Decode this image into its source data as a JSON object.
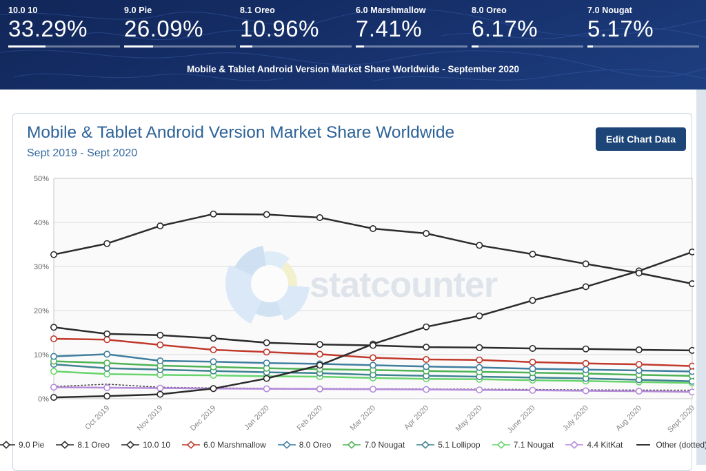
{
  "header": {
    "bg_color": "#16306b",
    "subtitle": "Mobile & Tablet Android Version Market Share Worldwide - September 2020",
    "stats": [
      {
        "label": "10.0 10",
        "value": "33.29%",
        "pct": 33.29
      },
      {
        "label": "9.0 Pie",
        "value": "26.09%",
        "pct": 26.09
      },
      {
        "label": "8.1 Oreo",
        "value": "10.96%",
        "pct": 10.96
      },
      {
        "label": "6.0 Marshmallow",
        "value": "7.41%",
        "pct": 7.41
      },
      {
        "label": "8.0 Oreo",
        "value": "6.17%",
        "pct": 6.17
      },
      {
        "label": "7.0 Nougat",
        "value": "5.17%",
        "pct": 5.17
      }
    ]
  },
  "card": {
    "title": "Mobile & Tablet Android Version Market Share Worldwide",
    "subtitle": "Sept 2019 - Sept 2020",
    "edit_button": "Edit Chart Data",
    "title_color": "#2d6398",
    "button_color": "#1d4577"
  },
  "watermark": {
    "text": "statcounter"
  },
  "page": {
    "strip_color": "#dde4ee"
  },
  "chart_data": {
    "type": "line",
    "title": "Mobile & Tablet Android Version Market Share Worldwide",
    "subtitle": "Sept 2019 - Sept 2020",
    "x": [
      "Sept 2019",
      "Oct 2019",
      "Nov 2019",
      "Dec 2019",
      "Jan 2020",
      "Feb 2020",
      "Mar 2020",
      "Apr 2020",
      "May 2020",
      "June 2020",
      "July 2020",
      "Aug 2020",
      "Sept 2020"
    ],
    "x_axis_labels": [
      "Oct 2019",
      "Nov 2019",
      "Dec 2019",
      "Jan 2020",
      "Feb 2020",
      "Mar 2020",
      "Apr 2020",
      "May 2020",
      "June 2020",
      "July 2020",
      "Aug 2020",
      "Sept 2020"
    ],
    "ylim": [
      0,
      50
    ],
    "ytick_labels": [
      "0%",
      "10%",
      "20%",
      "30%",
      "40%",
      "50%"
    ],
    "grid": "horizontal",
    "legend_position": "bottom",
    "marker": "open-circle",
    "series": [
      {
        "name": "9.0 Pie",
        "color": "#2b2b2b",
        "style": "solid",
        "values": [
          32.7,
          35.2,
          39.2,
          41.9,
          41.8,
          41.1,
          38.6,
          37.5,
          34.8,
          32.8,
          30.6,
          28.5,
          26.09
        ]
      },
      {
        "name": "8.1 Oreo",
        "color": "#2b2b2b",
        "style": "solid",
        "values": [
          16.2,
          14.7,
          14.4,
          13.7,
          12.7,
          12.3,
          12.1,
          11.7,
          11.6,
          11.4,
          11.3,
          11.1,
          10.96
        ]
      },
      {
        "name": "10.0 10",
        "color": "#2b2b2b",
        "style": "solid",
        "values": [
          0.3,
          0.6,
          1.0,
          2.3,
          4.6,
          7.6,
          12.4,
          16.3,
          18.8,
          22.3,
          25.4,
          29.0,
          33.29
        ]
      },
      {
        "name": "6.0 Marshmallow",
        "color": "#c0392b",
        "style": "solid",
        "values": [
          13.6,
          13.4,
          12.2,
          11.1,
          10.6,
          10.1,
          9.3,
          8.9,
          8.8,
          8.3,
          8.0,
          7.8,
          7.41
        ]
      },
      {
        "name": "8.0 Oreo",
        "color": "#3f7e9e",
        "style": "solid",
        "values": [
          9.6,
          10.1,
          8.6,
          8.4,
          8.1,
          7.9,
          7.6,
          7.3,
          7.1,
          6.8,
          6.6,
          6.4,
          6.17
        ]
      },
      {
        "name": "7.0 Nougat",
        "color": "#4eb354",
        "style": "solid",
        "values": [
          8.5,
          8.1,
          7.5,
          7.2,
          6.9,
          6.7,
          6.5,
          6.3,
          6.1,
          5.9,
          5.7,
          5.4,
          5.17
        ]
      },
      {
        "name": "5.1 Lollipop",
        "color": "#3f8290",
        "style": "solid",
        "values": [
          7.8,
          6.9,
          6.6,
          6.3,
          6.0,
          5.8,
          5.4,
          5.2,
          5.0,
          4.8,
          4.6,
          4.3,
          3.93
        ]
      },
      {
        "name": "7.1 Nougat",
        "color": "#67d46c",
        "style": "solid",
        "values": [
          6.2,
          5.6,
          5.4,
          5.3,
          5.1,
          5.0,
          4.7,
          4.5,
          4.4,
          4.2,
          4.0,
          3.8,
          3.55
        ]
      },
      {
        "name": "4.4 KitKat",
        "color": "#b58ada",
        "style": "solid",
        "values": [
          2.6,
          2.5,
          2.4,
          2.3,
          2.25,
          2.2,
          2.15,
          2.1,
          2.0,
          1.9,
          1.8,
          1.7,
          1.51
        ]
      },
      {
        "name": "Other (dotted)",
        "color": "#444444",
        "style": "dotted",
        "values": [
          2.75,
          3.3,
          2.6,
          2.45,
          2.35,
          2.3,
          2.25,
          2.2,
          2.15,
          2.1,
          2.0,
          1.95,
          1.92
        ]
      }
    ]
  }
}
